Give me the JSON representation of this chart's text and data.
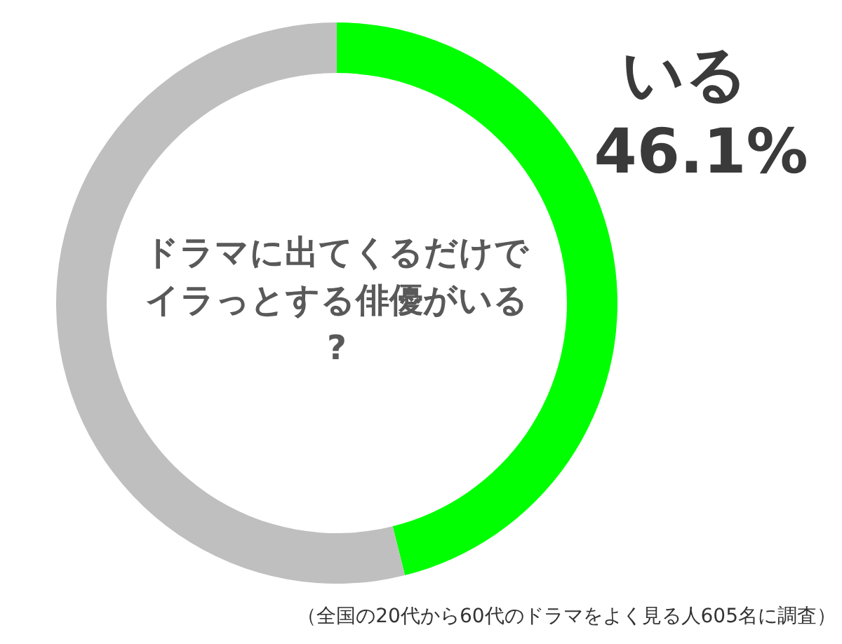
{
  "chart_data": {
    "type": "donut",
    "title": "ドラマに出てくるだけでイラっとする俳優がいる?",
    "categories": [
      "いる",
      null
    ],
    "values": [
      46.1,
      53.9
    ],
    "colors": [
      "#00ff00",
      "#bfbfbf"
    ],
    "value_labels": [
      "46.1%",
      null
    ],
    "legend": false,
    "annotations": [
      "（全国の20代から60代のドラマをよく見る人605名に調査）"
    ]
  }
}
